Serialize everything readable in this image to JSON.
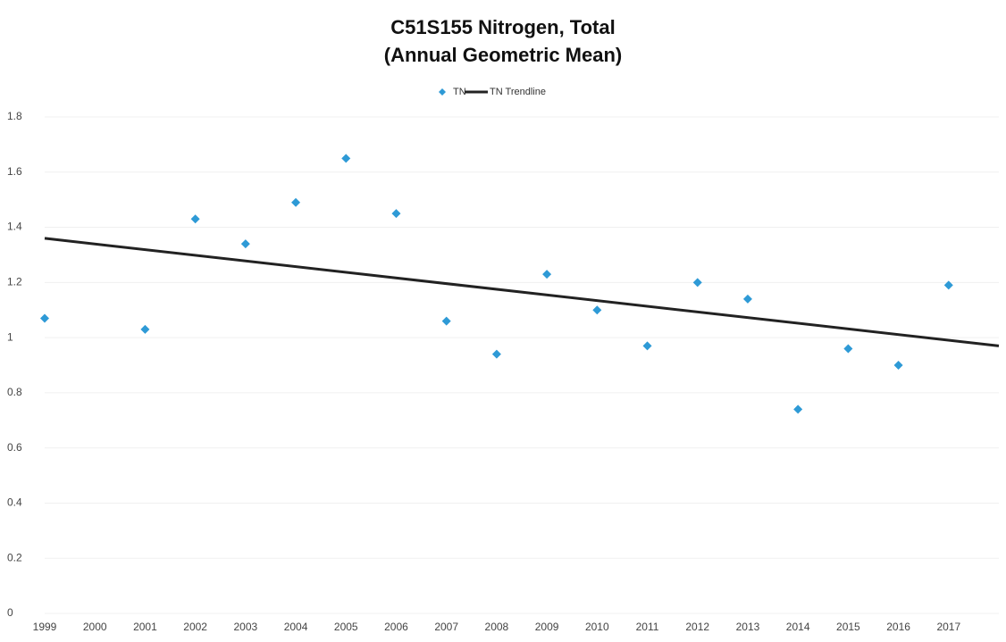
{
  "chart_data": {
    "type": "scatter",
    "title": [
      "C51S155 Nitrogen, Total",
      "(Annual Geometric Mean)"
    ],
    "series": [
      {
        "name": "TN",
        "color": "#2e9ad6",
        "marker": "diamond",
        "x": [
          1999,
          2001,
          2002,
          2003,
          2004,
          2005,
          2006,
          2007,
          2008,
          2009,
          2010,
          2011,
          2012,
          2013,
          2014,
          2015,
          2016,
          2017
        ],
        "values": [
          1.07,
          1.03,
          1.43,
          1.34,
          1.49,
          1.65,
          1.45,
          1.06,
          0.94,
          1.23,
          1.1,
          0.97,
          1.2,
          1.14,
          0.74,
          0.96,
          0.9,
          1.19
        ]
      },
      {
        "name": "TN Trendline",
        "color": "#222222",
        "marker": "line",
        "x": [
          1999,
          2018
        ],
        "values": [
          1.36,
          0.97
        ]
      }
    ],
    "xlim": [
      1999,
      2018
    ],
    "xticks": [
      1999,
      2000,
      2001,
      2002,
      2003,
      2004,
      2005,
      2006,
      2007,
      2008,
      2009,
      2010,
      2011,
      2012,
      2013,
      2014,
      2015,
      2016,
      2017
    ],
    "ylim": [
      0,
      1.8
    ],
    "yticks": [
      0,
      0.2,
      0.4,
      0.6,
      0.8,
      1,
      1.2,
      1.4,
      1.6,
      1.8
    ],
    "grid": true,
    "legend": "top"
  }
}
